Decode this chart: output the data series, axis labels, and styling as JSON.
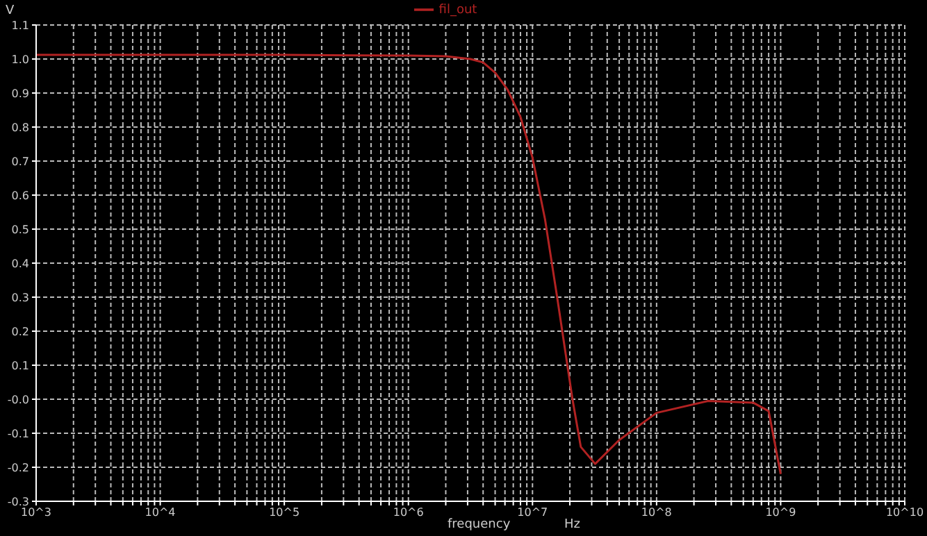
{
  "chart_data": {
    "type": "line",
    "xlabel": "frequency",
    "ylabel": "V",
    "annotations": [
      "Hz"
    ],
    "log": "x",
    "grid": true,
    "legend": "top",
    "marker": "none",
    "line_style": "solid",
    "x": [
      1000,
      10000,
      100000,
      1000000,
      2000000,
      3160000,
      4000000,
      5000000,
      6300000,
      8000000,
      10000000,
      12600000,
      15800000,
      21000000,
      24500000,
      32000000,
      50000000,
      100000000,
      260000000,
      600000000,
      800000000,
      1000000000
    ],
    "series": [
      {
        "name": "fil_out",
        "color": "#b22222",
        "values": [
          1.012,
          1.012,
          1.012,
          1.01,
          1.008,
          1.0,
          0.99,
          0.96,
          0.91,
          0.83,
          0.71,
          0.53,
          0.3,
          0,
          -0.14,
          -0.19,
          -0.12,
          -0.04,
          -0.005,
          -0.01,
          -0.035,
          -0.22
        ]
      }
    ],
    "xlim": [
      1000,
      10000000000
    ],
    "xticks": [
      {
        "value": 1000,
        "label": "10^3"
      },
      {
        "value": 2000,
        "label": null
      },
      {
        "value": 3000,
        "label": null
      },
      {
        "value": 4000,
        "label": null
      },
      {
        "value": 5000,
        "label": null
      },
      {
        "value": 6000,
        "label": null
      },
      {
        "value": 7000,
        "label": null
      },
      {
        "value": 8000,
        "label": null
      },
      {
        "value": 9000,
        "label": null
      },
      {
        "value": 10000,
        "label": "10^4"
      },
      {
        "value": 20000,
        "label": null
      },
      {
        "value": 30000,
        "label": null
      },
      {
        "value": 40000,
        "label": null
      },
      {
        "value": 50000,
        "label": null
      },
      {
        "value": 60000,
        "label": null
      },
      {
        "value": 70000,
        "label": null
      },
      {
        "value": 80000,
        "label": null
      },
      {
        "value": 90000,
        "label": null
      },
      {
        "value": 100000,
        "label": "10^5"
      },
      {
        "value": 200000,
        "label": null
      },
      {
        "value": 300000,
        "label": null
      },
      {
        "value": 400000,
        "label": null
      },
      {
        "value": 500000,
        "label": null
      },
      {
        "value": 600000,
        "label": null
      },
      {
        "value": 700000,
        "label": null
      },
      {
        "value": 800000,
        "label": null
      },
      {
        "value": 900000,
        "label": null
      },
      {
        "value": 1000000,
        "label": "10^6"
      },
      {
        "value": 2000000,
        "label": null
      },
      {
        "value": 3000000,
        "label": null
      },
      {
        "value": 4000000,
        "label": null
      },
      {
        "value": 5000000,
        "label": null
      },
      {
        "value": 6000000,
        "label": null
      },
      {
        "value": 7000000,
        "label": null
      },
      {
        "value": 8000000,
        "label": null
      },
      {
        "value": 9000000,
        "label": null
      },
      {
        "value": 10000000,
        "label": "10^7"
      },
      {
        "value": 20000000,
        "label": null
      },
      {
        "value": 30000000,
        "label": null
      },
      {
        "value": 40000000,
        "label": null
      },
      {
        "value": 50000000,
        "label": null
      },
      {
        "value": 60000000,
        "label": null
      },
      {
        "value": 70000000,
        "label": null
      },
      {
        "value": 80000000,
        "label": null
      },
      {
        "value": 90000000,
        "label": null
      },
      {
        "value": 100000000,
        "label": "10^8"
      },
      {
        "value": 200000000,
        "label": null
      },
      {
        "value": 300000000,
        "label": null
      },
      {
        "value": 400000000,
        "label": null
      },
      {
        "value": 500000000,
        "label": null
      },
      {
        "value": 600000000,
        "label": null
      },
      {
        "value": 700000000,
        "label": null
      },
      {
        "value": 800000000,
        "label": null
      },
      {
        "value": 900000000,
        "label": null
      },
      {
        "value": 1000000000,
        "label": "10^9"
      },
      {
        "value": 2000000000,
        "label": null
      },
      {
        "value": 3000000000,
        "label": null
      },
      {
        "value": 4000000000,
        "label": null
      },
      {
        "value": 5000000000,
        "label": null
      },
      {
        "value": 6000000000,
        "label": null
      },
      {
        "value": 7000000000,
        "label": null
      },
      {
        "value": 8000000000,
        "label": null
      },
      {
        "value": 9000000000,
        "label": null
      },
      {
        "value": 10000000000,
        "label": "10^10"
      }
    ],
    "ylim": [
      -0.3,
      1.1
    ],
    "yticks": [
      -0.3,
      -0.2,
      -0.1,
      {
        "value": 0,
        "label": "-0.0"
      },
      0.1,
      0.2,
      0.3,
      0.4,
      0.5,
      0.6,
      0.7,
      0.8,
      0.9,
      {
        "value": 1,
        "label": "1.0"
      },
      1.1
    ]
  }
}
